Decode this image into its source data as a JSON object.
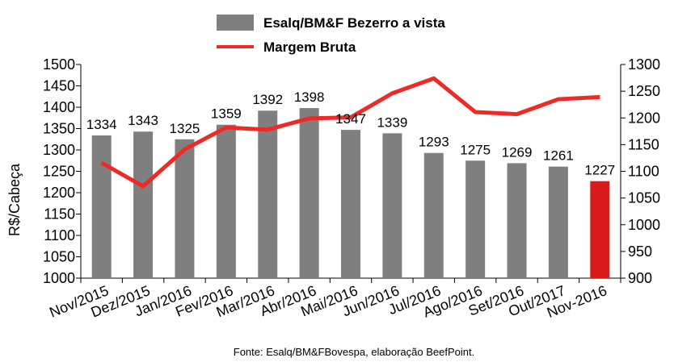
{
  "chart_data": {
    "type": "bar-line-combo",
    "legend": {
      "placement": "top-center",
      "entries": [
        "Esalq/BM&F Bezerro a vista",
        "Margem Bruta"
      ]
    },
    "categories": [
      "Nov/2015",
      "Dez/2015",
      "Jan/2016",
      "Fev/2016",
      "Mar/2016",
      "Abr/2016",
      "Mai/2016",
      "Jun/2016",
      "Jul/2016",
      "Ago/2016",
      "Set/2016",
      "Out/2017",
      "Nov-2016"
    ],
    "ylabel": "R$/Cabeça",
    "ylim": [
      1000,
      1500
    ],
    "ylim_right": [
      900,
      1300
    ],
    "yticks": [
      1000,
      1050,
      1100,
      1150,
      1200,
      1250,
      1300,
      1350,
      1400,
      1450,
      1500
    ],
    "yticks_right": [
      900,
      950,
      1000,
      1050,
      1100,
      1150,
      1200,
      1250,
      1300
    ],
    "grid": false,
    "series": [
      {
        "name": "Esalq/BM&F Bezerro a vista",
        "type": "bar",
        "axis": "left",
        "values": [
          1334,
          1343,
          1325,
          1359,
          1392,
          1398,
          1347,
          1339,
          1293,
          1275,
          1269,
          1261,
          1227
        ],
        "color": "#7f7f7f",
        "highlight_last_color": "#d91a1a"
      },
      {
        "name": "Margem Bruta",
        "type": "line",
        "axis": "right",
        "values": [
          1116,
          1072,
          1141,
          1182,
          1178,
          1199,
          1201,
          1246,
          1274,
          1211,
          1207,
          1235,
          1239
        ],
        "color": "#ee2a26"
      }
    ],
    "source": "Fonte:  Esalq/BM&FBovespa,  elaboração  BeefPoint."
  }
}
